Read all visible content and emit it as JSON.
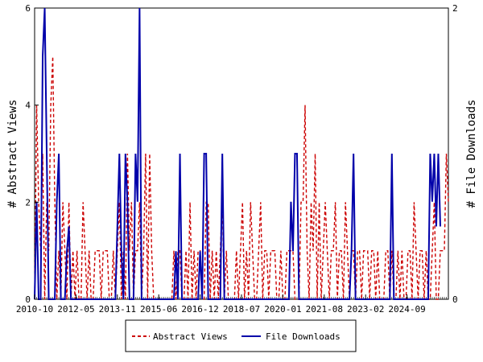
{
  "chart_data": {
    "type": "line",
    "x_ticks": [
      "2010-10",
      "2012-05",
      "2013-11",
      "2015-06",
      "2016-12",
      "2018-07",
      "2020-01",
      "2021-08",
      "2023-02",
      "2024-09"
    ],
    "y_left": {
      "label": "# Abstract Views",
      "ticks": [
        "0",
        "2",
        "4",
        "6"
      ],
      "range": [
        0,
        6
      ]
    },
    "y_right": {
      "label": "# File Downloads",
      "ticks": [
        "0",
        "2"
      ],
      "range": [
        0,
        2
      ]
    },
    "legend": {
      "placement": "bottom"
    },
    "series": [
      {
        "name": "Abstract Views",
        "axis": "left",
        "color": "#cc0000",
        "style": "dashed",
        "values": [
          0,
          4,
          2,
          1,
          3,
          0,
          2,
          1,
          4,
          5,
          2,
          0,
          1,
          0,
          2,
          1,
          0,
          2,
          0,
          1,
          0,
          1,
          0,
          0,
          2,
          1,
          0,
          1,
          0,
          0,
          1,
          1,
          1,
          0,
          1,
          1,
          1,
          0,
          0,
          1,
          0,
          1,
          2,
          0,
          1,
          0,
          3,
          1,
          2,
          0,
          1,
          1,
          2,
          0,
          1,
          3,
          0,
          3,
          1,
          0,
          0,
          0,
          0,
          0,
          0,
          0,
          0,
          0,
          0,
          1,
          0,
          1,
          1,
          0,
          0,
          1,
          0,
          2,
          0,
          1,
          0,
          1,
          1,
          0,
          0,
          2,
          2,
          0,
          1,
          0,
          1,
          0,
          1,
          2,
          0,
          1,
          0,
          0,
          0,
          0,
          1,
          0,
          1,
          2,
          0,
          1,
          0,
          2,
          1,
          0,
          0,
          1,
          2,
          0,
          1,
          1,
          0,
          1,
          1,
          1,
          0,
          0,
          1,
          0,
          0,
          1,
          1,
          1,
          1,
          0,
          0,
          0,
          2,
          2,
          4,
          1,
          0,
          2,
          1,
          3,
          0,
          2,
          0,
          1,
          2,
          1,
          0,
          1,
          1,
          2,
          0,
          1,
          1,
          0,
          2,
          1,
          0,
          1,
          1,
          0,
          1,
          1,
          0,
          1,
          1,
          1,
          0,
          1,
          1,
          0,
          1,
          0,
          0,
          0,
          1,
          1,
          0,
          1,
          0,
          0,
          1,
          0,
          1,
          0,
          0,
          1,
          1,
          0,
          2,
          1,
          0,
          1,
          1,
          0,
          1,
          0,
          0,
          1,
          2,
          0,
          0,
          1,
          1,
          1,
          3,
          2
        ]
      },
      {
        "name": "File Downloads",
        "axis": "right",
        "color": "#0000aa",
        "style": "solid",
        "values": [
          0,
          0.67,
          0,
          0,
          1.67,
          2,
          1,
          0,
          0,
          0,
          0,
          0.67,
          1,
          0,
          0,
          0,
          0.33,
          0.5,
          0,
          0,
          0,
          0,
          0,
          0,
          0,
          0,
          0,
          0,
          0,
          0,
          0,
          0,
          0,
          0,
          0,
          0,
          0,
          0,
          0,
          0,
          0,
          0.5,
          1,
          0.33,
          0,
          1,
          0.67,
          0,
          0,
          0,
          1,
          0.67,
          2,
          0,
          0,
          0,
          0,
          0,
          0,
          0,
          0,
          0,
          0,
          0,
          0,
          0,
          0,
          0,
          0,
          0,
          0.33,
          0,
          1,
          0,
          0,
          0,
          0,
          0,
          0,
          0,
          0,
          0,
          0.33,
          0,
          1,
          1,
          0,
          0,
          0,
          0,
          0,
          0,
          0,
          1,
          0,
          0,
          0,
          0,
          0,
          0,
          0,
          0,
          0,
          0,
          0,
          0,
          0,
          0,
          0,
          0,
          0,
          0,
          0,
          0,
          0,
          0,
          0,
          0,
          0,
          0,
          0,
          0,
          0,
          0,
          0,
          0,
          0,
          0.67,
          0.33,
          1,
          1,
          0,
          0,
          0,
          0,
          0,
          0,
          0,
          0,
          0,
          0,
          0,
          0,
          0,
          0,
          0,
          0,
          0,
          0,
          0,
          0,
          0,
          0,
          0,
          0,
          0,
          0,
          0.33,
          1,
          0,
          0,
          0,
          0,
          0,
          0,
          0,
          0,
          0,
          0,
          0,
          0,
          0,
          0,
          0,
          0,
          0,
          0,
          1,
          0,
          0,
          0,
          0,
          0,
          0,
          0,
          0,
          0,
          0,
          0,
          0,
          0,
          0,
          0,
          0,
          0,
          0,
          1,
          0.67,
          1,
          0.5,
          1,
          0.5
        ]
      }
    ]
  }
}
